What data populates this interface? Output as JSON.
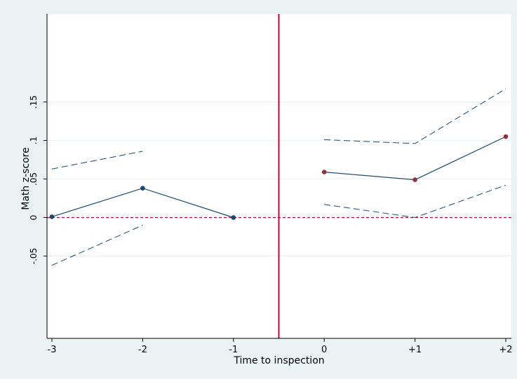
{
  "chart_data": {
    "type": "line",
    "xlabel": "Time to inspection",
    "ylabel": "Math z-score",
    "x_categories": [
      "-3",
      "-2",
      "-1",
      "0",
      "+1",
      "+2"
    ],
    "x_values": [
      -3,
      -2,
      -1,
      0,
      1,
      2
    ],
    "y_ticks": [
      -0.05,
      0,
      0.05,
      0.1,
      0.15
    ],
    "y_tick_labels": [
      "-.05",
      "0",
      ".05",
      ".1",
      ".15"
    ],
    "xlim": [
      -3,
      2
    ],
    "ylim": [
      -0.16,
      0.26
    ],
    "grid": "horizontal",
    "event_line_x": -0.5,
    "zero_reference_line": 0,
    "series": [
      {
        "role": "estimate",
        "segment": "pre",
        "color": "#1a476f",
        "line_style": "solid",
        "markers": true,
        "x": [
          -3,
          -2,
          -1
        ],
        "y": [
          0.001,
          0.038,
          0.0
        ]
      },
      {
        "role": "upper-ci",
        "segment": "pre",
        "color": "#1a476f",
        "line_style": "dashed",
        "markers": false,
        "x": [
          -3,
          -2
        ],
        "y": [
          0.063,
          0.086
        ]
      },
      {
        "role": "lower-ci",
        "segment": "pre",
        "color": "#1a476f",
        "line_style": "dashed",
        "markers": false,
        "x": [
          -3,
          -2
        ],
        "y": [
          -0.062,
          -0.01
        ]
      },
      {
        "role": "estimate",
        "segment": "post",
        "color": "#1a476f",
        "marker_color": "#90353b",
        "line_style": "solid",
        "markers": true,
        "x": [
          0,
          1,
          2
        ],
        "y": [
          0.059,
          0.049,
          0.105
        ]
      },
      {
        "role": "upper-ci",
        "segment": "post",
        "color": "#1a476f",
        "line_style": "dashed",
        "markers": false,
        "x": [
          0,
          1,
          2
        ],
        "y": [
          0.101,
          0.096,
          0.167
        ]
      },
      {
        "role": "lower-ci",
        "segment": "post",
        "color": "#1a476f",
        "line_style": "dashed",
        "markers": false,
        "x": [
          0,
          1,
          2
        ],
        "y": [
          0.017,
          0.0,
          0.042
        ]
      }
    ],
    "colors": {
      "background": "#eaf2f3",
      "plot_background": "#ffffff",
      "event_line": "#c10534",
      "zero_line": "#c10534",
      "grid": "#eaf2f3"
    }
  }
}
